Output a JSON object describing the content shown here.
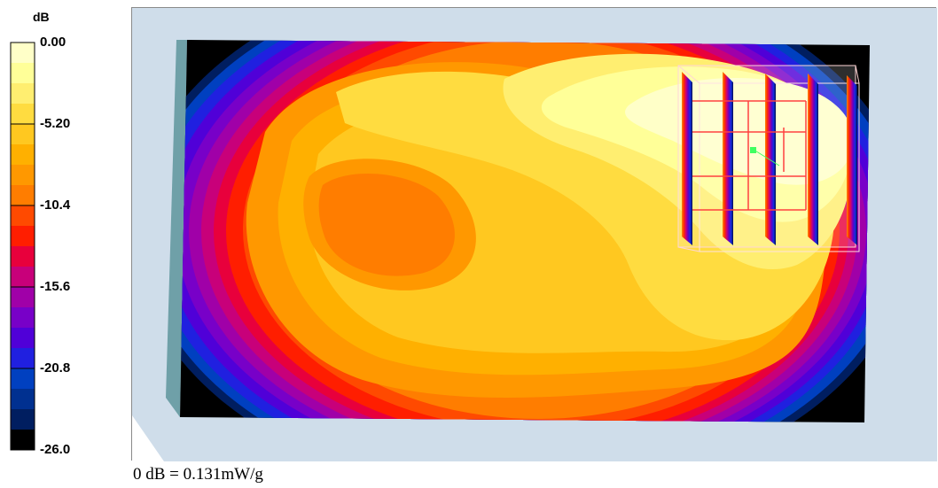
{
  "chart_data": {
    "type": "heatmap",
    "colorbar": {
      "unit": "dB",
      "range": [
        -26.0,
        0.0
      ],
      "tick_labels": [
        "0.00",
        "-5.20",
        "-10.4",
        "-15.6",
        "-20.8",
        "-26.0"
      ],
      "tick_values": [
        0.0,
        -5.2,
        -10.4,
        -15.6,
        -20.8,
        -26.0
      ],
      "colors": [
        "#ffffc8",
        "#ffff98",
        "#ffee70",
        "#ffdc40",
        "#ffc820",
        "#ffb000",
        "#ff9800",
        "#ff7d00",
        "#ff4a00",
        "#ff1e00",
        "#e8003c",
        "#c8007a",
        "#a000a8",
        "#7800c8",
        "#5000d8",
        "#2020e0",
        "#0040c0",
        "#003090",
        "#001e60",
        "#000000"
      ]
    },
    "reference": "0 dB = 0.131mW/g"
  }
}
